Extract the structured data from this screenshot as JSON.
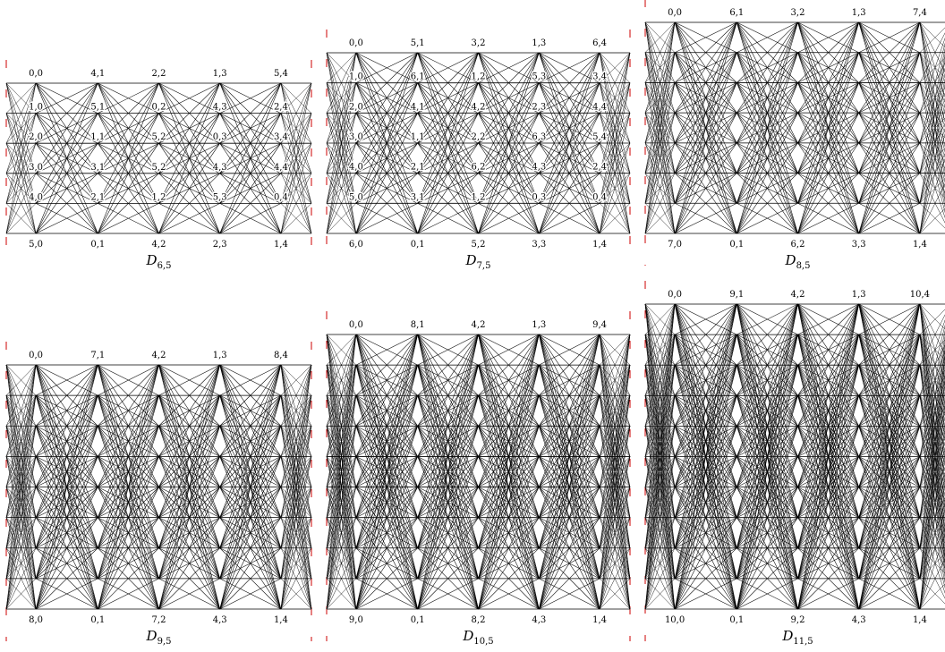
{
  "diagrams": [
    {
      "name": "D",
      "subscript": "6,5",
      "top_labels": [
        "0,0",
        "4,1",
        "2,2",
        "1,3",
        "5,4"
      ],
      "bottom_labels": [
        "5,0",
        "0,1",
        "4,2",
        "2,3",
        "1,4"
      ],
      "inner_labels": [
        [
          "1,0",
          "5,1",
          "0,2",
          "4,3",
          "2,4"
        ],
        [
          "2,0",
          "1,1",
          "5,2",
          "0,3",
          "3,4"
        ],
        [
          "3,0",
          "3,1",
          "5,2",
          "4,3",
          "4,4"
        ],
        [
          "4,0",
          "2,1",
          "1,2",
          "5,3",
          "0,4"
        ]
      ]
    },
    {
      "name": "D",
      "subscript": "7,5",
      "top_labels": [
        "0,0",
        "5,1",
        "3,2",
        "1,3",
        "6,4"
      ],
      "bottom_labels": [
        "6,0",
        "0,1",
        "5,2",
        "3,3",
        "1,4"
      ],
      "inner_labels": [
        [
          "1,0",
          "6,1",
          "1,2",
          "5,3",
          "3,4"
        ],
        [
          "2,0",
          "4,1",
          "4,2",
          "2,3",
          "4,4"
        ],
        [
          "3,0",
          "1,1",
          "2,2",
          "6,3",
          "5,4"
        ],
        [
          "4,0",
          "2,1",
          "6,2",
          "4,3",
          "2,4"
        ],
        [
          "5,0",
          "3,1",
          "1,2",
          "0,3",
          "0,4"
        ]
      ]
    },
    {
      "name": "D",
      "subscript": "8,5",
      "top_labels": [
        "0,0",
        "6,1",
        "3,2",
        "1,3",
        "7,4"
      ],
      "bottom_labels": [
        "7,0",
        "0,1",
        "6,2",
        "3,3",
        "1,4"
      ],
      "inner_labels": []
    },
    {
      "name": "D",
      "subscript": "9,5",
      "top_labels": [
        "0,0",
        "7,1",
        "4,2",
        "1,3",
        "8,4"
      ],
      "bottom_labels": [
        "8,0",
        "0,1",
        "7,2",
        "4,3",
        "1,4"
      ],
      "inner_labels": []
    },
    {
      "name": "D",
      "subscript": "10,5",
      "top_labels": [
        "0,0",
        "8,1",
        "4,2",
        "1,3",
        "9,4"
      ],
      "bottom_labels": [
        "9,0",
        "0,1",
        "8,2",
        "4,3",
        "1,4"
      ],
      "inner_labels": []
    },
    {
      "name": "D",
      "subscript": "11,5",
      "top_labels": [
        "0,0",
        "9,1",
        "4,2",
        "1,3",
        "10,4"
      ],
      "bottom_labels": [
        "10,0",
        "0,1",
        "9,2",
        "4,3",
        "1,4"
      ],
      "inner_labels": []
    }
  ],
  "colors": {
    "edge": "#000000",
    "frame": "#cc0000",
    "label_bg": "#ffffff"
  }
}
